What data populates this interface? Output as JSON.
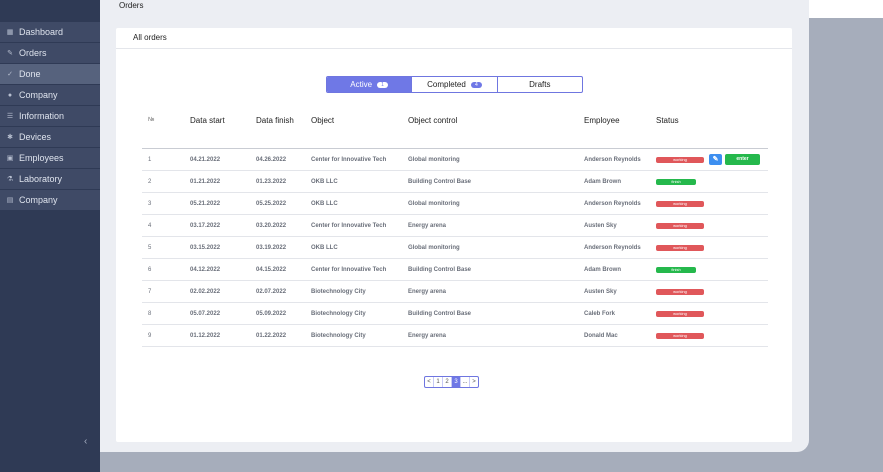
{
  "header": {
    "title": "Orders"
  },
  "sidebar": {
    "items": [
      {
        "label": "Dashboard",
        "icon": "grid-icon"
      },
      {
        "label": "Orders",
        "icon": "pencil-icon"
      },
      {
        "label": "Done",
        "icon": "check-icon"
      },
      {
        "label": "Company",
        "icon": "users-icon"
      },
      {
        "label": "Information",
        "icon": "list-icon"
      },
      {
        "label": "Devices",
        "icon": "gear-icon"
      },
      {
        "label": "Employees",
        "icon": "badge-icon"
      },
      {
        "label": "Laboratory",
        "icon": "flask-icon"
      },
      {
        "label": "Company",
        "icon": "building-icon"
      }
    ],
    "active_index": 2,
    "collapse_glyph": "‹"
  },
  "main": {
    "section_title": "All orders",
    "tabs": [
      {
        "label": "Active",
        "badge": "1",
        "active": true
      },
      {
        "label": "Completed",
        "badge": "4",
        "active": false
      },
      {
        "label": "Drafts",
        "badge": "",
        "active": false
      }
    ],
    "table": {
      "columns": [
        "№",
        "Data start",
        "Data finish",
        "Object",
        "Object control",
        "Employee",
        "Status"
      ],
      "rows": [
        {
          "no": "1",
          "start": "04.21.2022",
          "finish": "04.26.2022",
          "object": "Center for Innovative Tech",
          "control": "Global monitoring",
          "employee": "Anderson Reynolds",
          "status": "working"
        },
        {
          "no": "2",
          "start": "01.21.2022",
          "finish": "01.23.2022",
          "object": "OKB LLC",
          "control": "Building Control Base",
          "employee": "Adam Brown",
          "status": "finish"
        },
        {
          "no": "3",
          "start": "05.21.2022",
          "finish": "05.25.2022",
          "object": "OKB LLC",
          "control": "Global monitoring",
          "employee": "Anderson Reynolds",
          "status": "working"
        },
        {
          "no": "4",
          "start": "03.17.2022",
          "finish": "03.20.2022",
          "object": "Center for Innovative Tech",
          "control": "Energy arena",
          "employee": "Austen Sky",
          "status": "working"
        },
        {
          "no": "5",
          "start": "03.15.2022",
          "finish": "03.19.2022",
          "object": "OKB LLC",
          "control": "Global monitoring",
          "employee": "Anderson Reynolds",
          "status": "working"
        },
        {
          "no": "6",
          "start": "04.12.2022",
          "finish": "04.15.2022",
          "object": "Center for Innovative Tech",
          "control": "Building Control Base",
          "employee": "Adam Brown",
          "status": "finish"
        },
        {
          "no": "7",
          "start": "02.02.2022",
          "finish": "02.07.2022",
          "object": "Biotechnology City",
          "control": "Energy arena",
          "employee": "Austen Sky",
          "status": "working"
        },
        {
          "no": "8",
          "start": "05.07.2022",
          "finish": "05.09.2022",
          "object": "Biotechnology City",
          "control": "Building Control Base",
          "employee": "Caleb Fork",
          "status": "working"
        },
        {
          "no": "9",
          "start": "01.12.2022",
          "finish": "01.22.2022",
          "object": "Biotechnology City",
          "control": "Energy arena",
          "employee": "Donald Mac",
          "status": "working"
        }
      ],
      "row_actions": {
        "edit_icon": "✎",
        "enter_label": "enter"
      }
    },
    "pagination": {
      "prev": "<",
      "pages": [
        "1",
        "2",
        "3"
      ],
      "current": "3",
      "ellipsis": "...",
      "next": ">"
    }
  },
  "colors": {
    "accent": "#6f78e6",
    "sidebar_bg": "#2f3a55",
    "working": "#e0575a",
    "finish": "#25b84c",
    "edit": "#3d8ff0"
  }
}
